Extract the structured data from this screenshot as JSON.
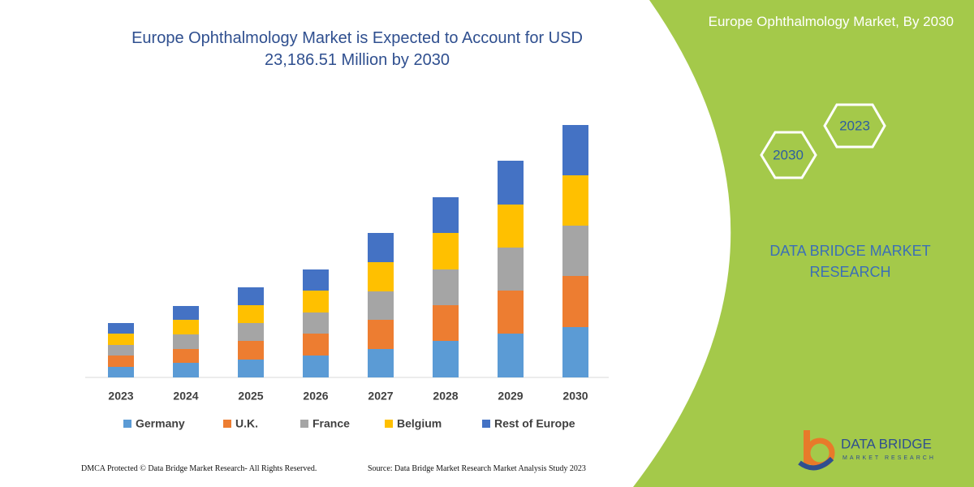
{
  "chart_data": {
    "type": "stacked-bar",
    "title": "Europe Ophthalmology Market is Expected to Account for USD 23,186.51 Million by 2030",
    "categories": [
      "2023",
      "2024",
      "2025",
      "2026",
      "2027",
      "2028",
      "2029",
      "2030"
    ],
    "series": [
      {
        "name": "Germany",
        "color": "#5b9bd5",
        "values": [
          13,
          18,
          22,
          27,
          35,
          45,
          54,
          62
        ]
      },
      {
        "name": "U.K.",
        "color": "#ed7d31",
        "values": [
          14,
          17,
          23,
          27,
          36,
          44,
          53,
          63
        ]
      },
      {
        "name": "France",
        "color": "#a5a5a5",
        "values": [
          13,
          18,
          22,
          26,
          35,
          44,
          53,
          62
        ]
      },
      {
        "name": "Belgium",
        "color": "#ffc000",
        "values": [
          14,
          18,
          22,
          27,
          36,
          45,
          53,
          62
        ]
      },
      {
        "name": "Rest of Europe",
        "color": "#4472c4",
        "values": [
          13,
          17,
          22,
          26,
          36,
          44,
          54,
          62
        ]
      }
    ],
    "ylim": [
      0,
      320
    ]
  },
  "side_title": "Europe Ophthalmology Market, By 2030",
  "hexagons": [
    "2023",
    "2030"
  ],
  "brand": "DATA BRIDGE MARKET RESEARCH",
  "logo": {
    "name": "DATA BRIDGE",
    "tagline": "MARKET RESEARCH"
  },
  "footer": {
    "left": "DMCA Protected © Data Bridge Market Research-  All Rights Reserved.",
    "right": "Source: Data Bridge Market Research  Market Analysis Study 2023"
  }
}
